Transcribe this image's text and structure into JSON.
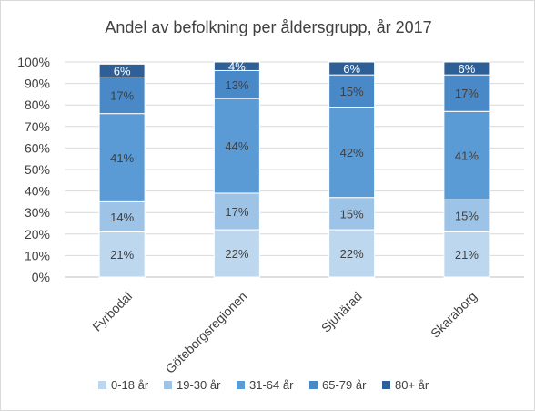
{
  "chart_data": {
    "type": "bar",
    "stacked": true,
    "title": "Andel av befolkning per åldersgrupp, år 2017",
    "categories": [
      "Fyrbodal",
      "Göteborgsregionen",
      "Sjuhärad",
      "Skaraborg"
    ],
    "y_ticks": [
      "0%",
      "10%",
      "20%",
      "30%",
      "40%",
      "50%",
      "60%",
      "70%",
      "80%",
      "90%",
      "100%"
    ],
    "ylim": [
      0,
      100
    ],
    "legend_position": "bottom",
    "grid": true,
    "series": [
      {
        "name": "0-18 år",
        "color": "#bdd7ee",
        "values": [
          21,
          22,
          22,
          21
        ],
        "labels": [
          "21%",
          "22%",
          "22%",
          "21%"
        ]
      },
      {
        "name": "19-30 år",
        "color": "#9dc3e6",
        "values": [
          14,
          17,
          15,
          15
        ],
        "labels": [
          "14%",
          "17%",
          "15%",
          "15%"
        ]
      },
      {
        "name": "31-64 år",
        "color": "#5b9bd5",
        "values": [
          41,
          44,
          42,
          41
        ],
        "labels": [
          "41%",
          "44%",
          "42%",
          "41%"
        ]
      },
      {
        "name": "65-79 år",
        "color": "#4a89c8",
        "values": [
          17,
          13,
          15,
          17
        ],
        "labels": [
          "17%",
          "13%",
          "15%",
          "17%"
        ]
      },
      {
        "name": "80+ år",
        "color": "#2e5f96",
        "values": [
          6,
          4,
          6,
          6
        ],
        "labels": [
          "6%",
          "4%",
          "6%",
          "6%"
        ]
      }
    ]
  }
}
